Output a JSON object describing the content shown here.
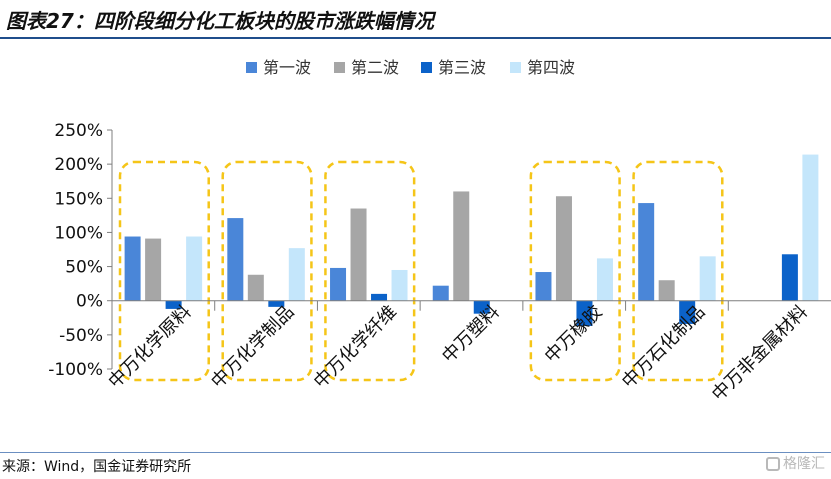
{
  "header": {
    "title": "图表27：四阶段细分化工板块的股市涨跌幅情况"
  },
  "footer": {
    "source": "来源：Wind，国金证券研究所",
    "watermark": "格隆汇"
  },
  "colors": {
    "series": [
      "#4a86d8",
      "#a6a6a6",
      "#0b62c9",
      "#c4e6fb"
    ],
    "highlight": "#f5c518",
    "axis": "#7f7f7f",
    "title_rule": "#1f4e8c"
  },
  "chart_data": {
    "type": "bar",
    "title": "",
    "xlabel": "",
    "ylabel": "",
    "ylim": [
      -1.0,
      2.5
    ],
    "yticks": [
      -1.0,
      -0.5,
      0.0,
      0.5,
      1.0,
      1.5,
      2.0,
      2.5
    ],
    "ytick_labels": [
      "-100%",
      "-50%",
      "0%",
      "50%",
      "100%",
      "150%",
      "200%",
      "250%"
    ],
    "categories": [
      "中万化学原料",
      "中万化学制品",
      "中万化学纤维",
      "中万塑料",
      "中万橡胶",
      "中万石化制品",
      "中万非金属材料"
    ],
    "series": [
      {
        "name": "第一波",
        "values": [
          0.94,
          1.21,
          0.48,
          0.22,
          0.42,
          1.43,
          0.0
        ]
      },
      {
        "name": "第二波",
        "values": [
          0.91,
          0.38,
          1.35,
          1.6,
          1.53,
          0.3,
          0.0
        ]
      },
      {
        "name": "第三波",
        "values": [
          -0.12,
          -0.09,
          0.1,
          -0.19,
          -0.37,
          -0.34,
          0.68
        ]
      },
      {
        "name": "第四波",
        "values": [
          0.94,
          0.77,
          0.45,
          0.0,
          0.62,
          0.65,
          2.14
        ]
      }
    ],
    "highlighted_categories": [
      0,
      1,
      2,
      4,
      5
    ],
    "legend_position": "top-center",
    "grid": false
  }
}
